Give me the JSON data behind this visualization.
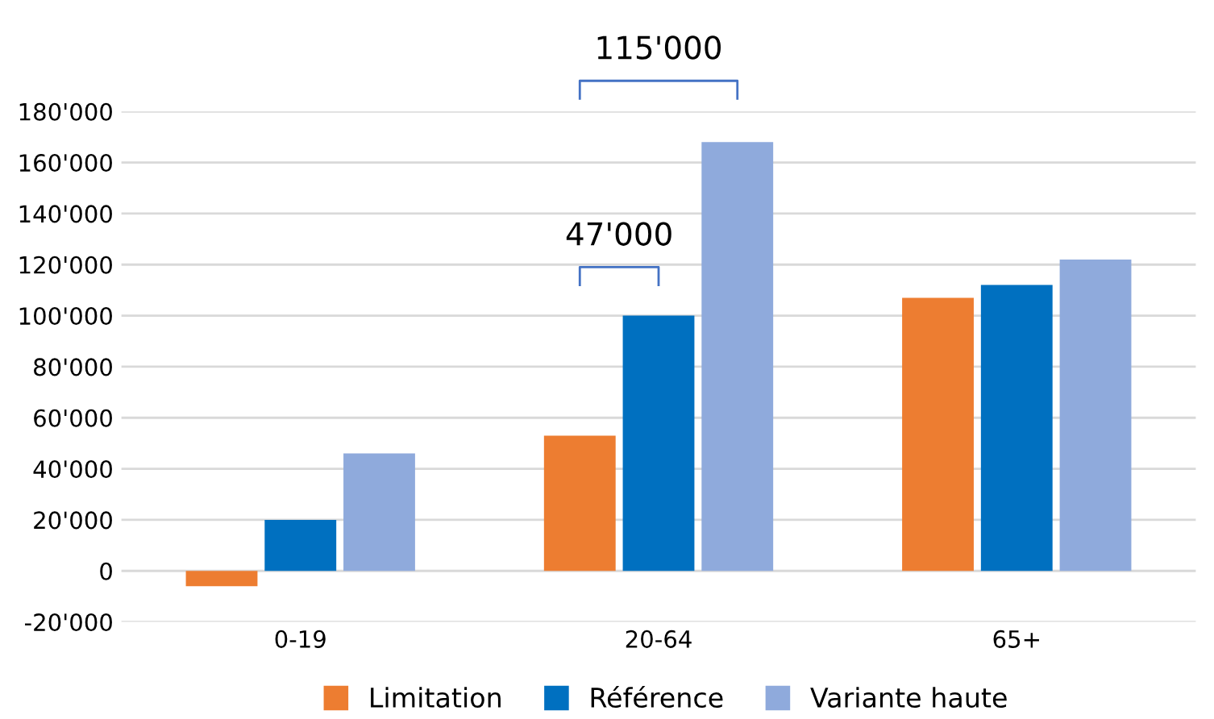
{
  "chart_data": {
    "type": "bar",
    "categories": [
      "0-19",
      "20-64",
      "65+"
    ],
    "series": [
      {
        "name": "Limitation",
        "color": "#ed7d31",
        "values": [
          -6000,
          53000,
          107000
        ]
      },
      {
        "name": "Référence",
        "color": "#0070c0",
        "values": [
          20000,
          100000,
          112000
        ]
      },
      {
        "name": "Variante haute",
        "color": "#8faadc",
        "values": [
          46000,
          168000,
          122000
        ]
      }
    ],
    "ylim": [
      -20000,
      180000
    ],
    "yticks": [
      {
        "value": -20000,
        "label": "-20'000"
      },
      0,
      {
        "value": 20000,
        "label": "20'000"
      },
      {
        "value": 40000,
        "label": "40'000"
      },
      {
        "value": 60000,
        "label": "60'000"
      },
      {
        "value": 80000,
        "label": "80'000"
      },
      {
        "value": 100000,
        "label": "100'000"
      },
      {
        "value": 120000,
        "label": "120'000"
      },
      {
        "value": 140000,
        "label": "140'000"
      },
      {
        "value": 160000,
        "label": "160'000"
      },
      {
        "value": 180000,
        "label": "180'000"
      }
    ],
    "grid": "y",
    "legend": "bottom",
    "annotations": [
      "47'000",
      "115'000"
    ]
  }
}
